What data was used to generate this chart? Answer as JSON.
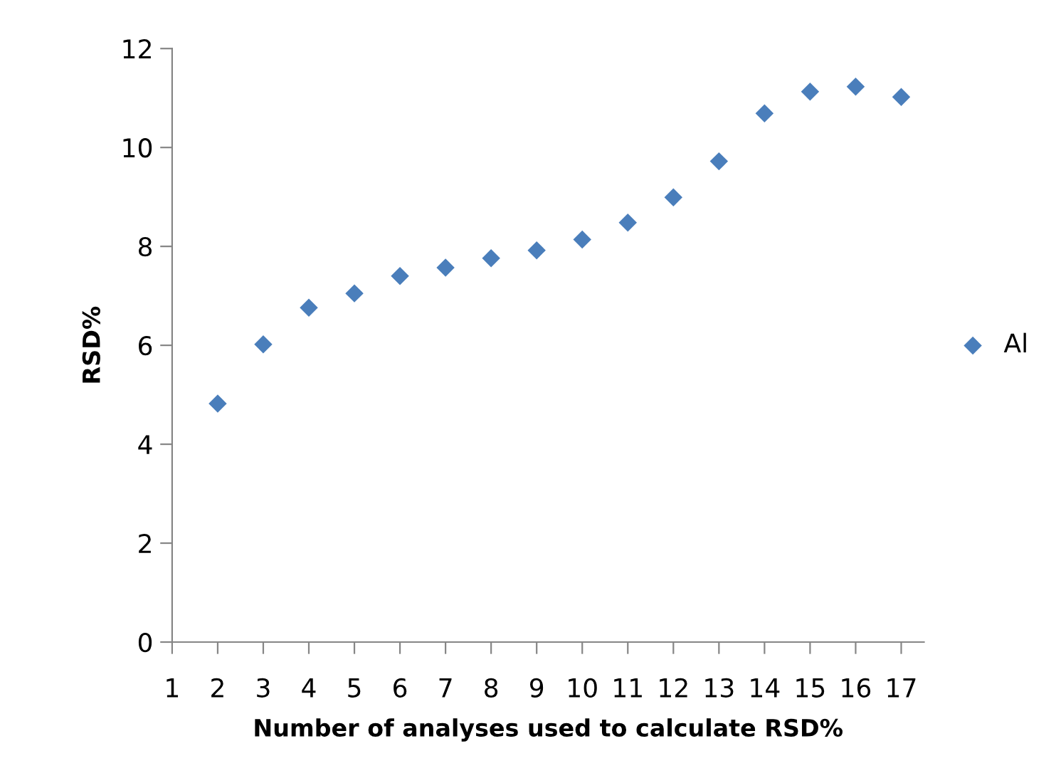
{
  "chart_data": {
    "type": "scatter",
    "xlabel": "Number of analyses used to calculate RSD%",
    "ylabel": "RSD%",
    "x": [
      2,
      3,
      4,
      5,
      6,
      7,
      8,
      9,
      10,
      11,
      12,
      13,
      14,
      15,
      16,
      17
    ],
    "series": [
      {
        "name": "Al",
        "color": "#4a7ebb",
        "values": [
          4.82,
          6.02,
          6.76,
          7.05,
          7.4,
          7.57,
          7.76,
          7.92,
          8.14,
          8.48,
          8.99,
          9.72,
          10.69,
          11.13,
          11.23,
          11.02
        ]
      }
    ],
    "xlim": [
      1,
      17.5
    ],
    "xticks": [
      1,
      2,
      3,
      4,
      5,
      6,
      7,
      8,
      9,
      10,
      11,
      12,
      13,
      14,
      15,
      16,
      17
    ],
    "ylim": [
      0,
      12
    ],
    "yticks": [
      0,
      2,
      4,
      6,
      8,
      10,
      12
    ],
    "marker": "diamond",
    "grid": false,
    "legend": "right"
  }
}
